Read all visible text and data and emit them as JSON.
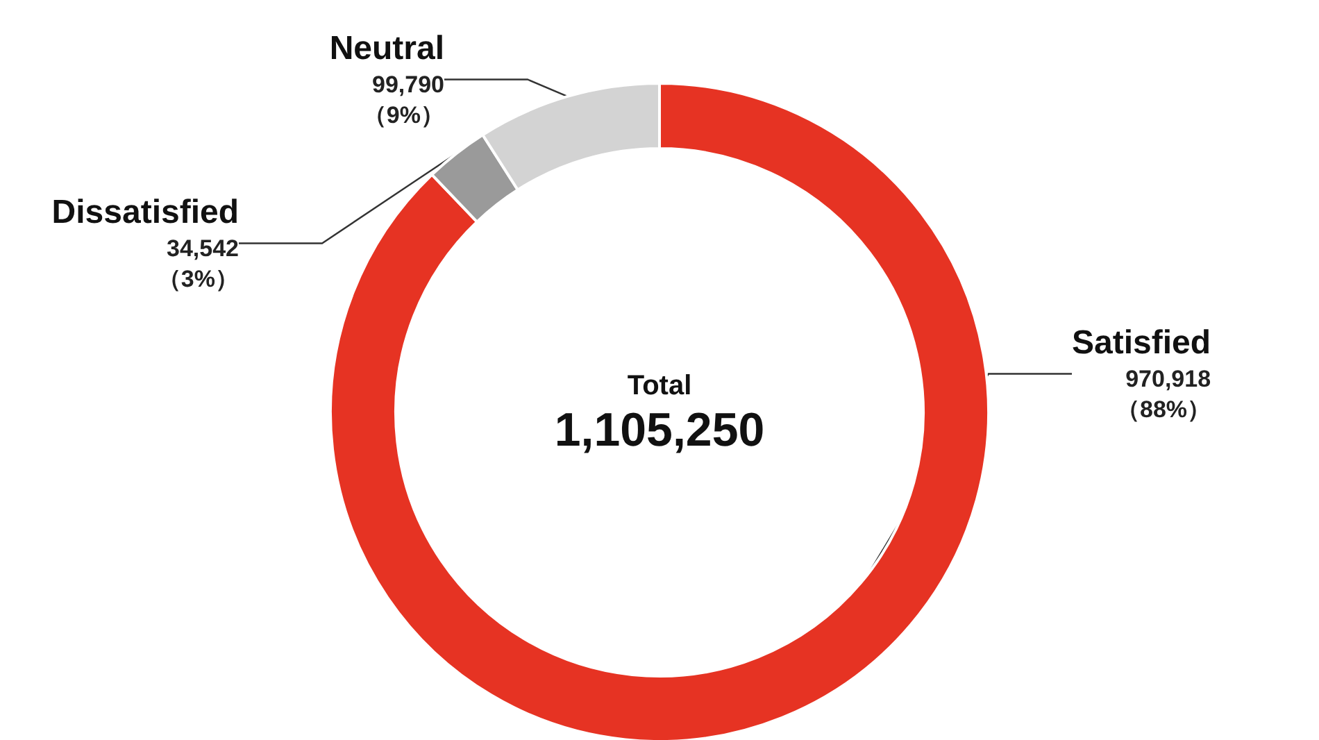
{
  "chart_data": {
    "type": "donut",
    "categories": [
      "Satisfied",
      "Dissatisfied",
      "Neutral"
    ],
    "values": [
      970918,
      34542,
      99790
    ],
    "colors": [
      "#e63323",
      "#9a9a9a",
      "#d3d3d3"
    ],
    "value_labels": [
      "970,918\n（88%）",
      "34,542\n（3%）",
      "99,790\n（9%）"
    ],
    "annotations": [
      "Total",
      "1,105,250"
    ],
    "legend": false
  }
}
